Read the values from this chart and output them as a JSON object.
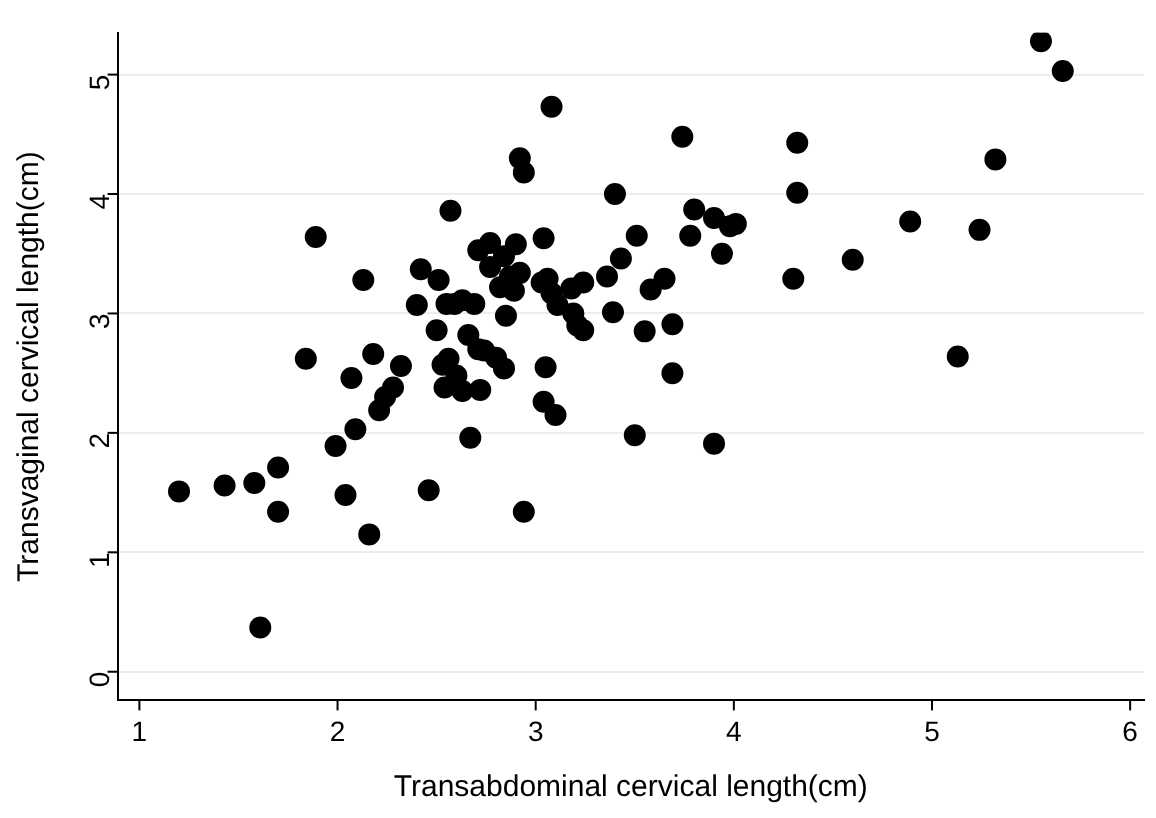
{
  "chart_data": {
    "type": "scatter",
    "xlabel": "Transabdominal cervical length(cm)",
    "ylabel": "Transvaginal cervical length(cm)",
    "xlim": [
      0.89,
      6.07
    ],
    "ylim": [
      -0.24,
      5.35
    ],
    "xticks": [
      1,
      2,
      3,
      4,
      5,
      6
    ],
    "yticks": [
      0,
      1,
      2,
      3,
      4,
      5
    ],
    "grid": "y",
    "marker": "circle",
    "legend": false,
    "series": [
      {
        "color": "#000000",
        "x": [
          1.2,
          1.43,
          1.58,
          1.7,
          1.7,
          1.61,
          1.89,
          1.84,
          2.04,
          2.16,
          1.99,
          2.09,
          2.21,
          2.24,
          2.28,
          2.32,
          2.07,
          2.18,
          2.13,
          3.08,
          3.74,
          2.92,
          2.94,
          3.4,
          2.57,
          3.8,
          3.9,
          3.98,
          4.01,
          3.94,
          3.78,
          3.51,
          3.04,
          3.43,
          3.36,
          3.65,
          3.58,
          3.39,
          3.55,
          3.69,
          3.69,
          3.5,
          3.9,
          3.05,
          3.04,
          3.1,
          2.94,
          2.46,
          2.67,
          2.71,
          2.77,
          2.9,
          2.84,
          2.77,
          2.92,
          2.87,
          2.82,
          2.89,
          3.06,
          3.03,
          3.08,
          3.11,
          3.18,
          3.24,
          3.19,
          3.21,
          3.24,
          2.42,
          2.51,
          2.4,
          2.55,
          2.59,
          2.63,
          2.69,
          2.85,
          2.5,
          2.66,
          2.71,
          2.74,
          2.8,
          2.84,
          2.56,
          2.53,
          2.6,
          2.54,
          2.63,
          2.72,
          5.55,
          5.66,
          4.32,
          5.32,
          4.32,
          4.89,
          5.24,
          4.6,
          4.3,
          5.13
        ],
        "values": [
          1.51,
          1.56,
          1.58,
          1.71,
          1.34,
          0.37,
          3.64,
          2.62,
          1.48,
          1.15,
          1.89,
          2.03,
          2.19,
          2.3,
          2.38,
          2.56,
          2.46,
          2.66,
          3.28,
          4.73,
          4.48,
          4.3,
          4.18,
          4.0,
          3.86,
          3.87,
          3.8,
          3.73,
          3.75,
          3.5,
          3.65,
          3.65,
          3.63,
          3.46,
          3.31,
          3.29,
          3.2,
          3.01,
          2.85,
          2.91,
          2.5,
          1.98,
          1.91,
          2.55,
          2.26,
          2.15,
          1.34,
          1.52,
          1.96,
          3.53,
          3.59,
          3.58,
          3.48,
          3.39,
          3.34,
          3.31,
          3.22,
          3.19,
          3.29,
          3.26,
          3.17,
          3.07,
          3.21,
          3.26,
          3.0,
          2.9,
          2.86,
          3.37,
          3.28,
          3.07,
          3.08,
          3.08,
          3.11,
          3.08,
          2.98,
          2.86,
          2.82,
          2.7,
          2.69,
          2.63,
          2.54,
          2.62,
          2.57,
          2.48,
          2.38,
          2.35,
          2.36,
          5.28,
          5.03,
          4.43,
          4.29,
          4.01,
          3.77,
          3.7,
          3.45,
          3.29,
          2.64
        ]
      }
    ]
  }
}
